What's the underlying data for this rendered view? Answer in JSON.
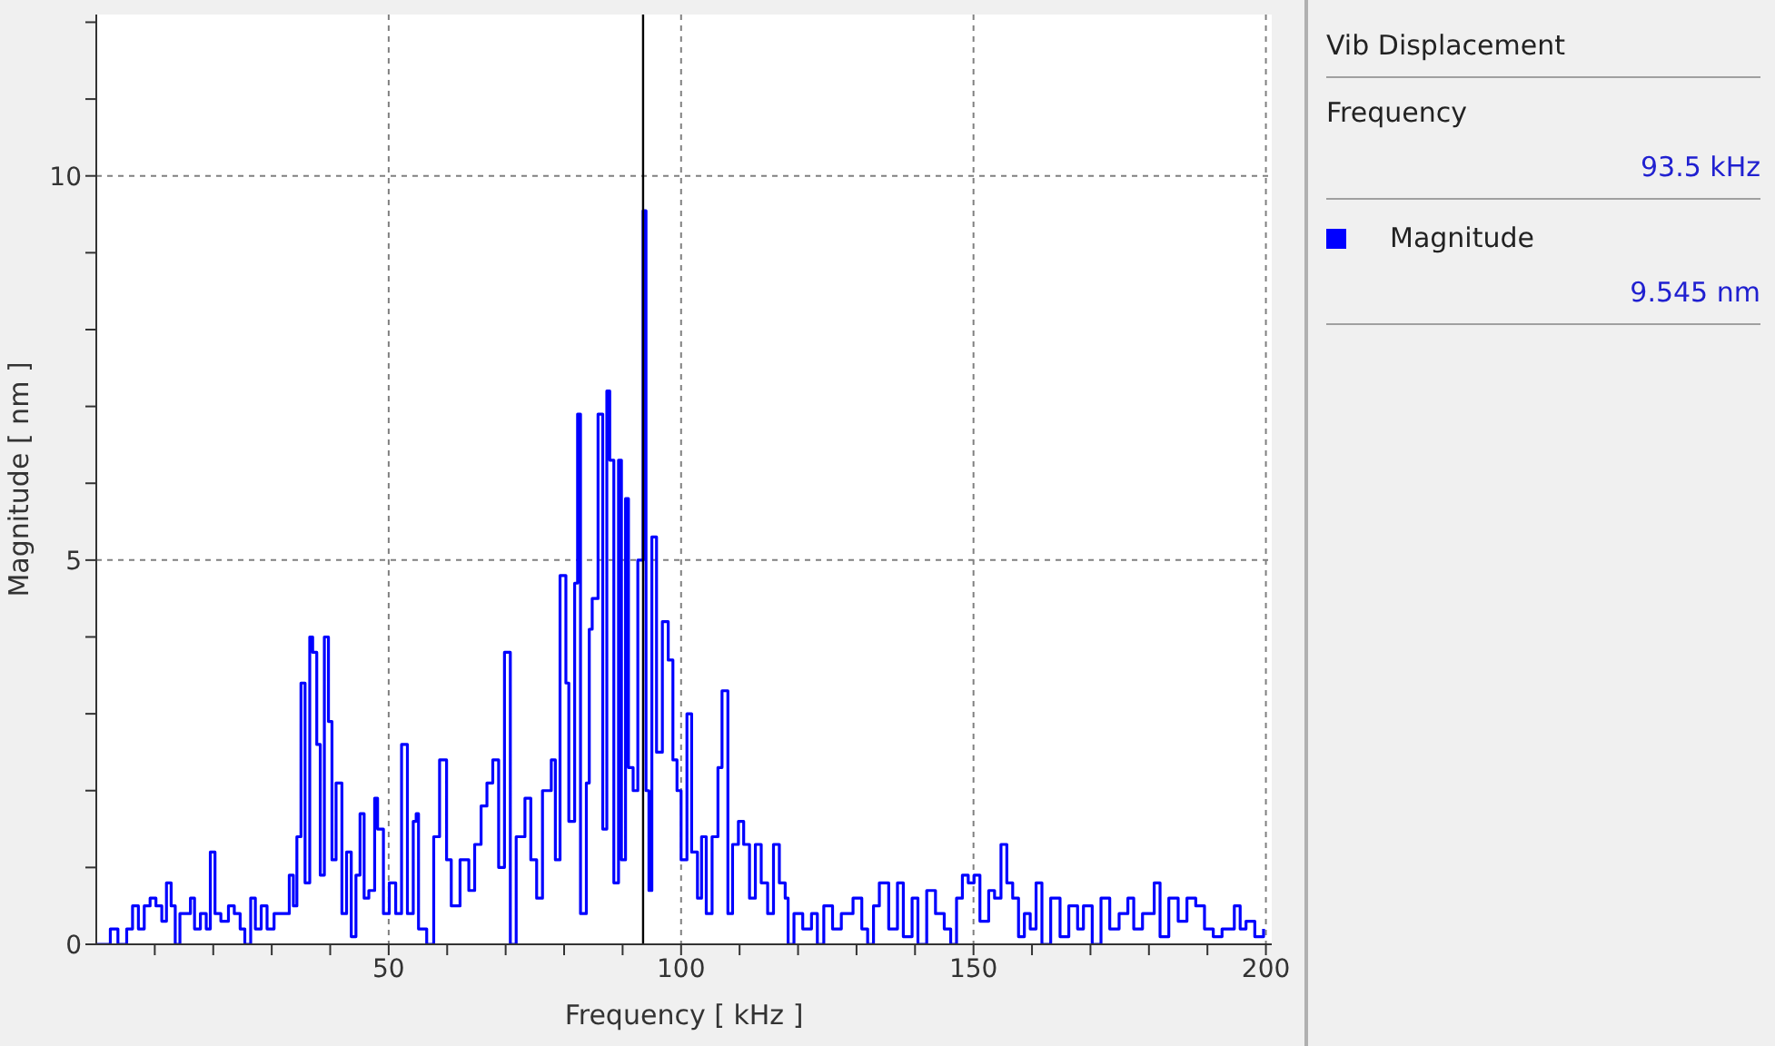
{
  "chart_data": {
    "type": "step",
    "title": "Vib Displacement",
    "xlabel": "Frequency [ kHz ]",
    "ylabel": "Magnitude [ nm ]",
    "xlim": [
      0,
      201
    ],
    "ylim": [
      0,
      12.1
    ],
    "xticks": [
      {
        "value": 10,
        "label": null
      },
      {
        "value": 20,
        "label": null
      },
      {
        "value": 30,
        "label": null
      },
      {
        "value": 40,
        "label": null
      },
      50,
      {
        "value": 60,
        "label": null
      },
      {
        "value": 70,
        "label": null
      },
      {
        "value": 80,
        "label": null
      },
      {
        "value": 90,
        "label": null
      },
      100,
      {
        "value": 110,
        "label": null
      },
      {
        "value": 120,
        "label": null
      },
      {
        "value": 130,
        "label": null
      },
      {
        "value": 140,
        "label": null
      },
      150,
      {
        "value": 160,
        "label": null
      },
      {
        "value": 170,
        "label": null
      },
      {
        "value": 180,
        "label": null
      },
      {
        "value": 190,
        "label": null
      },
      200
    ],
    "yticks": [
      0,
      {
        "value": 1,
        "label": null
      },
      {
        "value": 2,
        "label": null
      },
      {
        "value": 3,
        "label": null
      },
      {
        "value": 4,
        "label": null
      },
      5,
      {
        "value": 6,
        "label": null
      },
      {
        "value": 7,
        "label": null
      },
      {
        "value": 8,
        "label": null
      },
      {
        "value": 9,
        "label": null
      },
      10,
      {
        "value": 11,
        "label": null
      },
      {
        "value": 12,
        "label": null
      }
    ],
    "grid": true,
    "legend": "right",
    "line_style": "solid",
    "ref_lines": [
      {
        "axis": "x",
        "value": 93.5,
        "color": "#000000"
      }
    ],
    "annotations": [
      "Frequency",
      "93.5 kHz",
      "9.545 nm"
    ],
    "series": [
      {
        "name": "Magnitude",
        "color": "#0000ff",
        "x": [
          0.1,
          1.7,
          2.4,
          3,
          3.7,
          4.7,
          5.2,
          6.2,
          7.2,
          8.2,
          9.2,
          10.2,
          11.2,
          12,
          12.8,
          13.5,
          14.3,
          15.3,
          16.1,
          16.8,
          17.8,
          18.8,
          19.5,
          20.3,
          21.3,
          22.6,
          23.6,
          24.6,
          25.4,
          26.4,
          27.2,
          28.2,
          29.2,
          30.4,
          31.4,
          33,
          33.7,
          34.3,
          35,
          35.7,
          36.5,
          37,
          37.7,
          38.3,
          39,
          39.7,
          40.3,
          41,
          42,
          42.8,
          43.6,
          44.4,
          45.1,
          45.8,
          46.6,
          47.6,
          48.1,
          49.1,
          50.1,
          51.2,
          52.2,
          53.2,
          54.2,
          54.7,
          55.1,
          56.5,
          57.7,
          58.7,
          59.9,
          60.7,
          62.2,
          63.7,
          64.7,
          65.8,
          66.8,
          67.8,
          68.8,
          69.8,
          70.8,
          71.8,
          73.3,
          74.3,
          75.3,
          76.3,
          77.8,
          78.5,
          79.3,
          80.3,
          80.8,
          81.8,
          82.3,
          82.8,
          83.8,
          84.3,
          84.8,
          85.8,
          86.6,
          87.3,
          87.8,
          88.5,
          89.3,
          89.8,
          90.5,
          91,
          91.8,
          92.6,
          93.5,
          94,
          94.5,
          95,
          95.8,
          96.8,
          97.8,
          98.6,
          99.3,
          100,
          101,
          101.8,
          102.8,
          103.5,
          104.3,
          105.3,
          106.3,
          107,
          108,
          108.8,
          109.8,
          110.7,
          111.7,
          112.7,
          113.7,
          114.8,
          115.8,
          116.8,
          117.8,
          118.3,
          119.3,
          120.8,
          122.3,
          123.3,
          124.4,
          125.9,
          127.4,
          128.4,
          129.4,
          130.9,
          131.9,
          132.9,
          133.9,
          135.5,
          137,
          138,
          139.5,
          140.5,
          142,
          143.5,
          145,
          146.1,
          147.1,
          148.1,
          149.1,
          150.1,
          151.1,
          152.6,
          153.6,
          154.7,
          155.7,
          156.7,
          157.7,
          158.7,
          159.7,
          160.7,
          161.7,
          163.2,
          164.8,
          166.3,
          167.8,
          168.8,
          170.3,
          171.8,
          173.3,
          174.9,
          176.4,
          177.4,
          178.9,
          180.9,
          181.9,
          183.4,
          185,
          186.5,
          188,
          189.5,
          191,
          192.5,
          194.6,
          195.6,
          196.6,
          198.1,
          199.6
        ],
        "values": [
          0,
          0,
          0.2,
          0.2,
          0,
          0,
          0.2,
          0.5,
          0.2,
          0.5,
          0.6,
          0.5,
          0.3,
          0.8,
          0.5,
          0,
          0.4,
          0.4,
          0.6,
          0.2,
          0.4,
          0.2,
          1.2,
          0.4,
          0.3,
          0.5,
          0.4,
          0.2,
          0,
          0.6,
          0.2,
          0.5,
          0.2,
          0.4,
          0.4,
          0.9,
          0.5,
          1.4,
          3.4,
          0.8,
          4.0,
          3.8,
          2.6,
          0.9,
          4.0,
          2.9,
          1.1,
          2.1,
          0.4,
          1.2,
          0.1,
          0.9,
          1.7,
          0.6,
          0.7,
          1.9,
          1.5,
          0.4,
          0.8,
          0.4,
          2.6,
          0.4,
          1.6,
          1.7,
          0.2,
          0,
          1.4,
          2.4,
          1.1,
          0.5,
          1.1,
          0.7,
          1.3,
          1.8,
          2.1,
          2.4,
          1.0,
          3.8,
          0,
          1.4,
          1.9,
          1.1,
          0.6,
          2.0,
          2.4,
          1.1,
          4.8,
          3.4,
          1.6,
          4.7,
          6.9,
          0.4,
          2.1,
          4.1,
          4.5,
          6.9,
          1.5,
          7.2,
          6.3,
          0.8,
          6.3,
          1.1,
          5.8,
          2.3,
          2.0,
          5.0,
          9.545,
          2.0,
          0.7,
          5.3,
          2.5,
          4.2,
          3.7,
          2.4,
          2.0,
          1.1,
          3.0,
          1.2,
          0.6,
          1.4,
          0.4,
          1.4,
          2.3,
          3.3,
          0.4,
          1.3,
          1.6,
          1.3,
          0.6,
          1.3,
          0.8,
          0.4,
          1.3,
          0.8,
          0.6,
          0,
          0.4,
          0.2,
          0.4,
          0,
          0.5,
          0.2,
          0.4,
          0.4,
          0.6,
          0.2,
          0,
          0.5,
          0.8,
          0.2,
          0.8,
          0.1,
          0.6,
          0,
          0.7,
          0.4,
          0.2,
          0,
          0.6,
          0.9,
          0.8,
          0.9,
          0.3,
          0.7,
          0.6,
          1.3,
          0.8,
          0.6,
          0.1,
          0.4,
          0.2,
          0.8,
          0,
          0.6,
          0.1,
          0.5,
          0.2,
          0.5,
          0,
          0.6,
          0.2,
          0.4,
          0.6,
          0.2,
          0.4,
          0.8,
          0.1,
          0.6,
          0.3,
          0.6,
          0.5,
          0.2,
          0.1,
          0.2,
          0.5,
          0.2,
          0.3,
          0.1,
          0.2
        ]
      }
    ]
  }
}
